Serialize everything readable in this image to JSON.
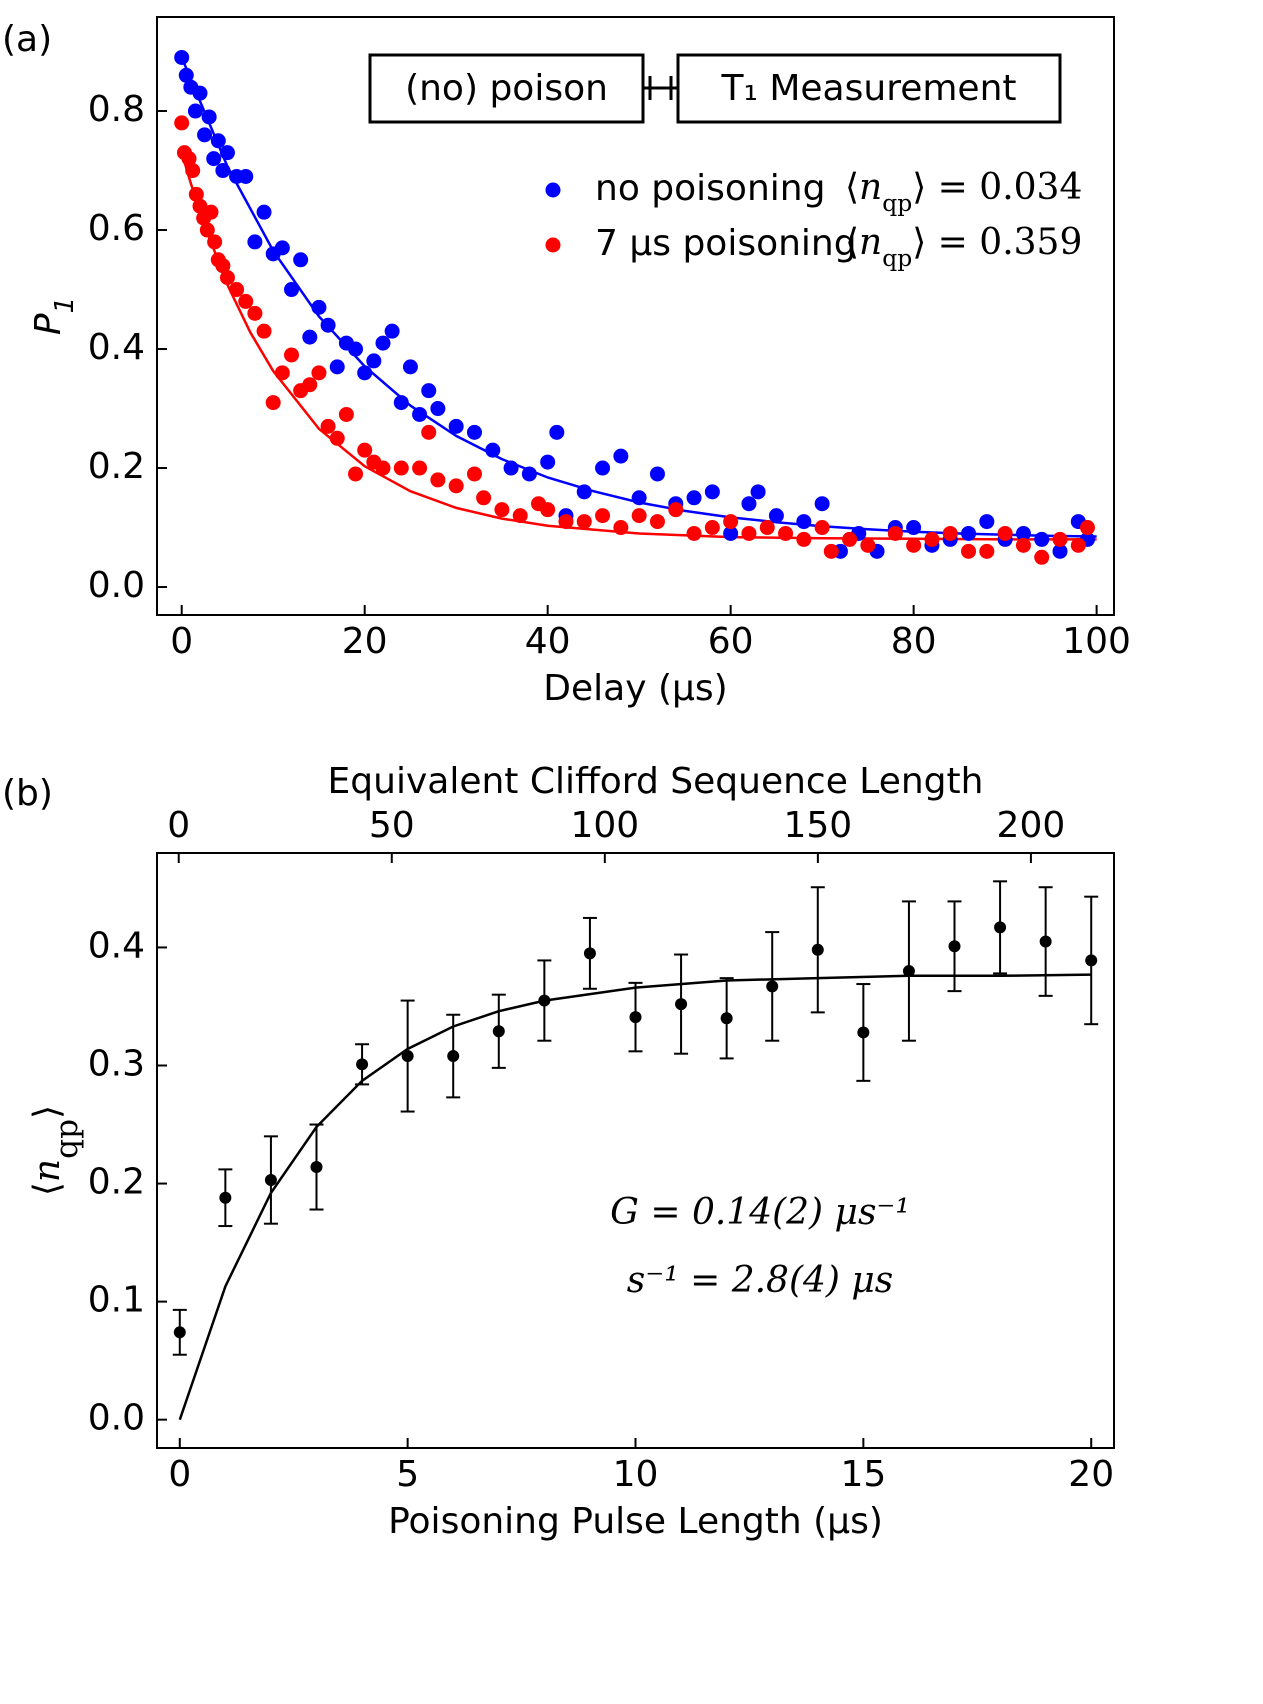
{
  "chart_data": [
    {
      "type": "scatter",
      "panel_label": "(a)",
      "xlabel": "Delay (μs)",
      "ylabel": {
        "symbol": "P",
        "sub": "1"
      },
      "xlim": [
        -2.7,
        101.9
      ],
      "ylim": [
        -0.047,
        0.958
      ],
      "xticks": [
        0,
        20,
        40,
        60,
        80,
        100
      ],
      "yticks": [
        {
          "value": 0,
          "label": "0.0"
        },
        0.2,
        0.4,
        0.6,
        0.8
      ],
      "inset": [
        "(no) poison",
        "T₁ Measurement"
      ],
      "series": [
        {
          "name": "no poisoning",
          "color": "#0000ff",
          "stat": {
            "open": "⟨",
            "symbol": "n",
            "sub": "qp",
            "rest": "⟩ = 0.034"
          },
          "x": [
            0,
            0.5,
            1,
            1.5,
            2,
            2.5,
            3,
            3.5,
            4,
            4.5,
            5,
            6,
            7,
            8,
            9,
            10,
            11,
            12,
            13,
            14,
            15,
            16,
            17,
            18,
            19,
            20,
            21,
            22,
            23,
            24,
            25,
            26,
            27,
            28,
            30,
            32,
            34,
            36,
            38,
            40,
            41,
            42,
            44,
            46,
            48,
            50,
            52,
            54,
            56,
            58,
            60,
            62,
            63,
            65,
            68,
            70,
            72,
            74,
            76,
            78,
            80,
            82,
            84,
            86,
            88,
            90,
            92,
            94,
            96,
            98,
            99
          ],
          "values": [
            0.89,
            0.86,
            0.84,
            0.8,
            0.83,
            0.76,
            0.79,
            0.72,
            0.75,
            0.7,
            0.73,
            0.69,
            0.69,
            0.58,
            0.63,
            0.56,
            0.57,
            0.5,
            0.55,
            0.42,
            0.47,
            0.44,
            0.37,
            0.41,
            0.4,
            0.36,
            0.38,
            0.41,
            0.43,
            0.31,
            0.37,
            0.29,
            0.33,
            0.3,
            0.27,
            0.26,
            0.23,
            0.2,
            0.19,
            0.21,
            0.26,
            0.12,
            0.16,
            0.2,
            0.22,
            0.15,
            0.19,
            0.14,
            0.15,
            0.16,
            0.09,
            0.14,
            0.16,
            0.12,
            0.11,
            0.14,
            0.06,
            0.09,
            0.06,
            0.1,
            0.1,
            0.07,
            0.08,
            0.09,
            0.11,
            0.08,
            0.09,
            0.08,
            0.06,
            0.11,
            0.08
          ]
        },
        {
          "name": "7 μs poisoning",
          "color": "#ff0000",
          "stat": {
            "open": "⟨",
            "symbol": "n",
            "sub": "qp",
            "rest": "⟩ = 0.359"
          },
          "x": [
            0,
            0.3,
            0.8,
            1.2,
            1.6,
            2,
            2.4,
            2.8,
            3.2,
            3.6,
            4,
            4.5,
            5,
            6,
            7,
            8,
            9,
            10,
            11,
            12,
            13,
            14,
            15,
            16,
            17,
            18,
            19,
            20,
            21,
            22,
            24,
            26,
            27,
            28,
            30,
            32,
            33,
            35,
            37,
            39,
            40,
            42,
            44,
            46,
            48,
            50,
            52,
            54,
            56,
            58,
            60,
            62,
            64,
            66,
            68,
            70,
            71,
            73,
            75,
            78,
            80,
            82,
            84,
            86,
            88,
            90,
            92,
            94,
            96,
            98,
            99
          ],
          "values": [
            0.78,
            0.73,
            0.72,
            0.7,
            0.66,
            0.64,
            0.62,
            0.6,
            0.63,
            0.58,
            0.55,
            0.54,
            0.52,
            0.5,
            0.48,
            0.46,
            0.43,
            0.31,
            0.36,
            0.39,
            0.33,
            0.34,
            0.36,
            0.27,
            0.25,
            0.29,
            0.19,
            0.23,
            0.21,
            0.2,
            0.2,
            0.2,
            0.26,
            0.18,
            0.17,
            0.19,
            0.15,
            0.13,
            0.12,
            0.14,
            0.13,
            0.11,
            0.11,
            0.12,
            0.1,
            0.12,
            0.11,
            0.13,
            0.09,
            0.1,
            0.11,
            0.09,
            0.1,
            0.09,
            0.08,
            0.1,
            0.06,
            0.08,
            0.07,
            0.09,
            0.07,
            0.08,
            0.09,
            0.06,
            0.06,
            0.09,
            0.07,
            0.05,
            0.08,
            0.07,
            0.1
          ]
        }
      ],
      "fits": [
        {
          "color": "#0000ff",
          "x": [
            0,
            5,
            10,
            15,
            20,
            25,
            30,
            35,
            40,
            45,
            50,
            55,
            60,
            65,
            70,
            75,
            80,
            85,
            90,
            95,
            100
          ],
          "values": [
            0.89,
            0.707,
            0.565,
            0.455,
            0.371,
            0.305,
            0.254,
            0.215,
            0.184,
            0.161,
            0.142,
            0.128,
            0.117,
            0.109,
            0.102,
            0.097,
            0.093,
            0.09,
            0.088,
            0.086,
            0.085
          ]
        },
        {
          "color": "#ff0000",
          "x": [
            0,
            1,
            2.5,
            5,
            7.5,
            10,
            15,
            20,
            25,
            30,
            35,
            40,
            50,
            60,
            70,
            80,
            90,
            100
          ],
          "values": [
            0.73,
            0.678,
            0.608,
            0.508,
            0.428,
            0.363,
            0.266,
            0.203,
            0.161,
            0.133,
            0.115,
            0.103,
            0.09,
            0.084,
            0.082,
            0.081,
            0.08,
            0.08
          ]
        }
      ]
    },
    {
      "type": "scatter",
      "panel_label": "(b)",
      "xlabel": "Poisoning Pulse Length (μs)",
      "x2label": "Equivalent Clifford Sequence Length",
      "ylabel": {
        "open": "⟨",
        "symbol": "n",
        "sub": "qp",
        "close": "⟩"
      },
      "xlim": [
        -0.5,
        20.5
      ],
      "ylim": [
        -0.024,
        0.48
      ],
      "x2lim": [
        -5.1,
        219.5
      ],
      "xticks": [
        0,
        5,
        10,
        15,
        20
      ],
      "x2ticks": [
        0,
        50,
        100,
        150,
        200
      ],
      "yticks": [
        {
          "value": 0,
          "label": "0.0"
        },
        0.1,
        0.2,
        0.3,
        0.4
      ],
      "annotations": [
        "G = 0.14(2) μs⁻¹",
        "s⁻¹ = 2.8(4) μs"
      ],
      "series": [
        {
          "color": "#000000",
          "x": [
            0,
            1,
            2,
            3,
            4,
            5,
            6,
            7,
            8,
            9,
            10,
            11,
            12,
            13,
            14,
            15,
            16,
            17,
            18,
            19,
            20
          ],
          "values": [
            0.074,
            0.188,
            0.203,
            0.214,
            0.301,
            0.308,
            0.308,
            0.329,
            0.355,
            0.395,
            0.341,
            0.352,
            0.34,
            0.367,
            0.398,
            0.328,
            0.38,
            0.401,
            0.417,
            0.405,
            0.389
          ],
          "errors": [
            0.019,
            0.024,
            0.037,
            0.036,
            0.017,
            0.047,
            0.035,
            0.031,
            0.034,
            0.03,
            0.029,
            0.042,
            0.034,
            0.046,
            0.053,
            0.041,
            0.059,
            0.038,
            0.039,
            0.046,
            0.054
          ]
        }
      ],
      "fits": [
        {
          "color": "#000000",
          "x": [
            0,
            1,
            2,
            3,
            4,
            5,
            6,
            7,
            8,
            10,
            12,
            14,
            16,
            18,
            20
          ],
          "values": [
            0,
            0.113,
            0.192,
            0.248,
            0.287,
            0.314,
            0.333,
            0.346,
            0.355,
            0.366,
            0.372,
            0.374,
            0.376,
            0.376,
            0.377
          ]
        }
      ]
    }
  ]
}
